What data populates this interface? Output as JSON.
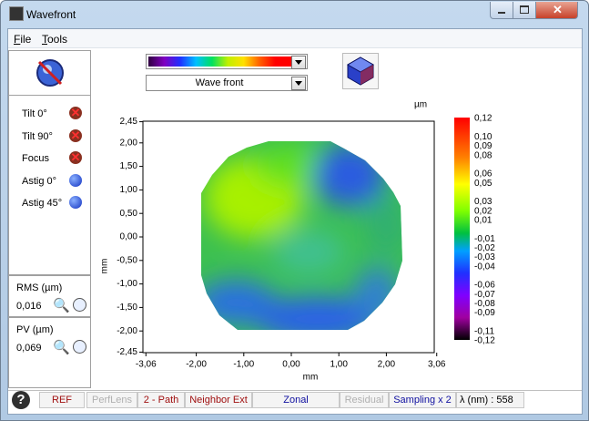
{
  "window": {
    "title": "Wavefront"
  },
  "menu": [
    "File",
    "Tools"
  ],
  "aberrations": [
    "Tilt 0°",
    "Tilt 90°",
    "Focus",
    "Astig 0°",
    "Astig 45°"
  ],
  "rms": {
    "label": "RMS (µm)",
    "value": "0,016"
  },
  "pv": {
    "label": "PV (µm)",
    "value": "0,069"
  },
  "display": {
    "selector": "Wave front"
  },
  "plot": {
    "unit": "µm",
    "x_label": "mm",
    "y_label": "mm",
    "x_ticks": [
      "-3,06",
      "-2,00",
      "-1,00",
      "0,00",
      "1,00",
      "2,00",
      "3,06"
    ],
    "y_ticks": [
      "2,45",
      "2,00",
      "1,50",
      "1,00",
      "0,50",
      "0,00",
      "-0,50",
      "-1,00",
      "-1,50",
      "-2,00",
      "-2,45"
    ],
    "colorbar_ticks": [
      "0,12",
      "0,10",
      "0,09",
      "0,08",
      "0,06",
      "0,05",
      "0,03",
      "0,02",
      "0,01",
      "-0,01",
      "-0,02",
      "-0,03",
      "-0,04",
      "-0,06",
      "-0,07",
      "-0,08",
      "-0,09",
      "-0,11",
      "-0,12"
    ]
  },
  "status": [
    "REF",
    "PerfLens",
    "2 - Path",
    "Neighbor Ext",
    "Zonal",
    "Residual",
    "Sampling x 2",
    "λ (nm) : 558"
  ]
}
